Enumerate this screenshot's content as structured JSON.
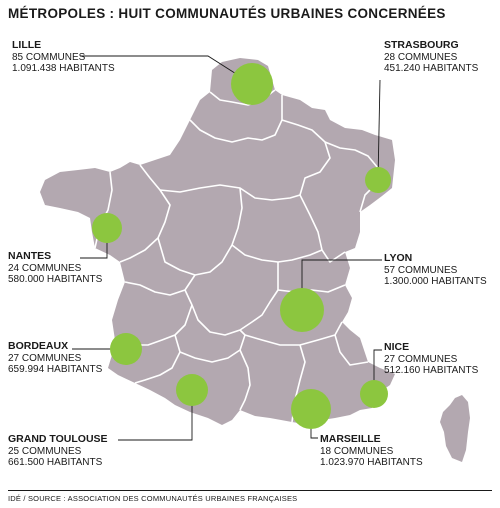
{
  "title": "MÉTROPOLES : HUIT COMMUNAUTÉS URBAINES CONCERNÉES",
  "source": "IDÉ / SOURCE : ASSOCIATION DES COMMUNAUTÉS URBAINES FRANÇAISES",
  "colors": {
    "territory": "#b3a8b0",
    "borders": "#ffffff",
    "circles": "#8cc63f",
    "text": "#1a1a1a"
  },
  "communautes": [
    {
      "id": "lille",
      "name": "LILLE",
      "communes": "85 COMMUNES",
      "habitants": "1.091.438 HABITANTS"
    },
    {
      "id": "strasbourg",
      "name": "STRASBOURG",
      "communes": "28 COMMUNES",
      "habitants": "451.240 HABITANTS"
    },
    {
      "id": "nantes",
      "name": "NANTES",
      "communes": "24 COMMUNES",
      "habitants": "580.000 HABITANTS"
    },
    {
      "id": "lyon",
      "name": "LYON",
      "communes": "57 COMMUNES",
      "habitants": "1.300.000 HABITANTS"
    },
    {
      "id": "bordeaux",
      "name": "BORDEAUX",
      "communes": "27 COMMUNES",
      "habitants": "659.994 HABITANTS"
    },
    {
      "id": "nice",
      "name": "NICE",
      "communes": "27 COMMUNES",
      "habitants": "512.160 HABITANTS"
    },
    {
      "id": "toulouse",
      "name": "GRAND TOULOUSE",
      "communes": "25 COMMUNES",
      "habitants": "661.500 HABITANTS"
    },
    {
      "id": "marseille",
      "name": "MARSEILLE",
      "communes": "18 COMMUNES",
      "habitants": "1.023.970 HABITANTS"
    }
  ]
}
